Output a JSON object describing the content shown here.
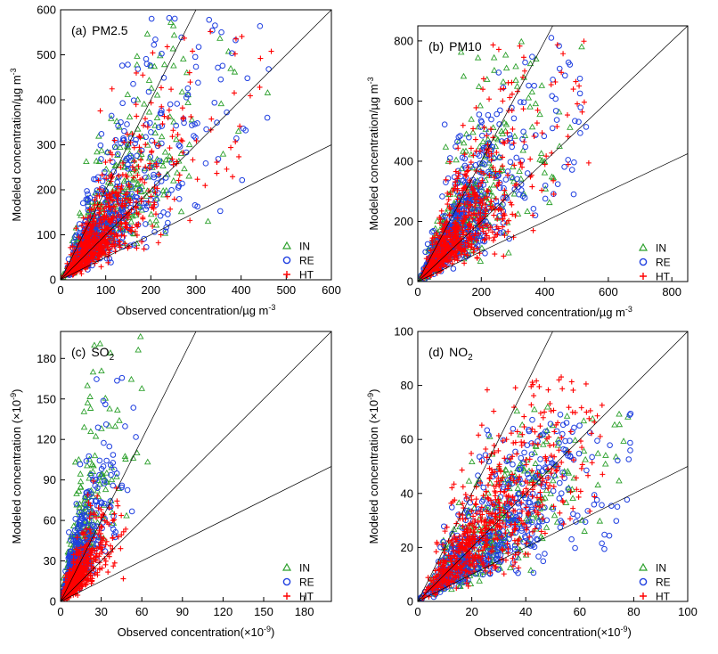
{
  "chart_data": [
    {
      "type": "scatter",
      "panel_label": "(a)",
      "title": "PM2.5",
      "title_sub": "",
      "xlabel": "Observed concentration/µg m",
      "xlabel_sup": "-3",
      "ylabel": "Modeled concentration/µg m",
      "ylabel_sup": "-3",
      "xlim": [
        0,
        600
      ],
      "ylim": [
        0,
        600
      ],
      "xticks": [
        0,
        100,
        200,
        300,
        400,
        500,
        600
      ],
      "yticks": [
        0,
        100,
        200,
        300,
        400,
        500,
        600
      ],
      "tick_labels_x": [
        "0",
        "100",
        "200",
        "300",
        "400",
        "500",
        "600"
      ],
      "tick_labels_y": [
        "0",
        "100",
        "200",
        "300",
        "400",
        "500",
        "600"
      ],
      "reference_line_slopes": [
        0.5,
        1,
        2
      ],
      "legend_position": "bottom-right",
      "series": [
        {
          "name": "IN",
          "marker": "triangle",
          "color": "#2ca02c",
          "n_points": 380,
          "x_range": [
            2,
            470
          ],
          "y_range": [
            5,
            590
          ],
          "center": [
            110,
            150
          ]
        },
        {
          "name": "RE",
          "marker": "circle",
          "color": "#1f3fe0",
          "n_points": 520,
          "x_range": [
            2,
            520
          ],
          "y_range": [
            5,
            600
          ],
          "center": [
            100,
            130
          ]
        },
        {
          "name": "HT",
          "marker": "plus",
          "color": "#ff0000",
          "n_points": 620,
          "x_range": [
            2,
            480
          ],
          "y_range": [
            5,
            560
          ],
          "center": [
            90,
            100
          ]
        }
      ]
    },
    {
      "type": "scatter",
      "panel_label": "(b)",
      "title": "PM10",
      "title_sub": "",
      "xlabel": "Observed concentration/µg m",
      "xlabel_sup": "-3",
      "ylabel": "Modeled concentration/µg m",
      "ylabel_sup": "-3",
      "xlim": [
        0,
        850
      ],
      "ylim": [
        0,
        850
      ],
      "xticks": [
        0,
        200,
        400,
        600,
        800
      ],
      "yticks": [
        0,
        200,
        400,
        600,
        800
      ],
      "tick_labels_x": [
        "0",
        "200",
        "400",
        "600",
        "800"
      ],
      "tick_labels_y": [
        "0",
        "200",
        "400",
        "600",
        "800"
      ],
      "reference_line_slopes": [
        0.5,
        1,
        2
      ],
      "legend_position": "bottom-right",
      "series": [
        {
          "name": "IN",
          "marker": "triangle",
          "color": "#2ca02c",
          "n_points": 380,
          "x_range": [
            2,
            520
          ],
          "y_range": [
            5,
            840
          ],
          "center": [
            150,
            220
          ]
        },
        {
          "name": "RE",
          "marker": "circle",
          "color": "#1f3fe0",
          "n_points": 520,
          "x_range": [
            2,
            560
          ],
          "y_range": [
            5,
            850
          ],
          "center": [
            140,
            200
          ]
        },
        {
          "name": "HT",
          "marker": "plus",
          "color": "#ff0000",
          "n_points": 620,
          "x_range": [
            2,
            540
          ],
          "y_range": [
            5,
            830
          ],
          "center": [
            130,
            170
          ]
        }
      ]
    },
    {
      "type": "scatter",
      "panel_label": "(c)",
      "title": "SO",
      "title_sub": "2",
      "xlabel": "Observed concentration(×10",
      "xlabel_sup": "-9",
      "xlabel_tail": ")",
      "ylabel": "Modeled concentration (×10",
      "ylabel_sup": "-9",
      "ylabel_tail": ")",
      "xlim": [
        0,
        200
      ],
      "ylim": [
        0,
        200
      ],
      "xticks": [
        0,
        30,
        60,
        90,
        120,
        150,
        180
      ],
      "yticks": [
        0,
        30,
        60,
        90,
        120,
        150,
        180
      ],
      "tick_labels_x": [
        "0",
        "30",
        "60",
        "90",
        "120",
        "150",
        "180"
      ],
      "tick_labels_y": [
        "0",
        "30",
        "60",
        "90",
        "120",
        "150",
        "180"
      ],
      "reference_line_slopes": [
        0.5,
        1,
        2
      ],
      "legend_position": "bottom-right",
      "series": [
        {
          "name": "IN",
          "marker": "triangle",
          "color": "#2ca02c",
          "n_points": 350,
          "x_range": [
            1,
            65
          ],
          "y_range": [
            1,
            198
          ],
          "center": [
            14,
            40
          ]
        },
        {
          "name": "RE",
          "marker": "circle",
          "color": "#1f3fe0",
          "n_points": 450,
          "x_range": [
            1,
            63
          ],
          "y_range": [
            1,
            175
          ],
          "center": [
            12,
            28
          ]
        },
        {
          "name": "HT",
          "marker": "plus",
          "color": "#ff0000",
          "n_points": 560,
          "x_range": [
            1,
            50
          ],
          "y_range": [
            1,
            90
          ],
          "center": [
            12,
            18
          ]
        }
      ]
    },
    {
      "type": "scatter",
      "panel_label": "(d)",
      "title": "NO",
      "title_sub": "2",
      "xlabel": "Observed concentration(×10",
      "xlabel_sup": "-9",
      "xlabel_tail": ")",
      "ylabel": "Modeled concentration (×10",
      "ylabel_sup": "-9",
      "ylabel_tail": ")",
      "xlim": [
        0,
        100
      ],
      "ylim": [
        0,
        100
      ],
      "xticks": [
        0,
        20,
        40,
        60,
        80,
        100
      ],
      "yticks": [
        0,
        20,
        40,
        60,
        80,
        100
      ],
      "tick_labels_x": [
        "0",
        "20",
        "40",
        "60",
        "80",
        "100"
      ],
      "tick_labels_y": [
        "0",
        "20",
        "40",
        "60",
        "80",
        "100"
      ],
      "reference_line_slopes": [
        0.5,
        1,
        2
      ],
      "legend_position": "bottom-right",
      "series": [
        {
          "name": "IN",
          "marker": "triangle",
          "color": "#2ca02c",
          "n_points": 380,
          "x_range": [
            1,
            78
          ],
          "y_range": [
            1,
            72
          ],
          "center": [
            30,
            28
          ]
        },
        {
          "name": "RE",
          "marker": "circle",
          "color": "#1f3fe0",
          "n_points": 520,
          "x_range": [
            1,
            80
          ],
          "y_range": [
            1,
            70
          ],
          "center": [
            30,
            28
          ]
        },
        {
          "name": "HT",
          "marker": "plus",
          "color": "#ff0000",
          "n_points": 620,
          "x_range": [
            1,
            70
          ],
          "y_range": [
            1,
            85
          ],
          "center": [
            30,
            32
          ]
        }
      ]
    }
  ]
}
